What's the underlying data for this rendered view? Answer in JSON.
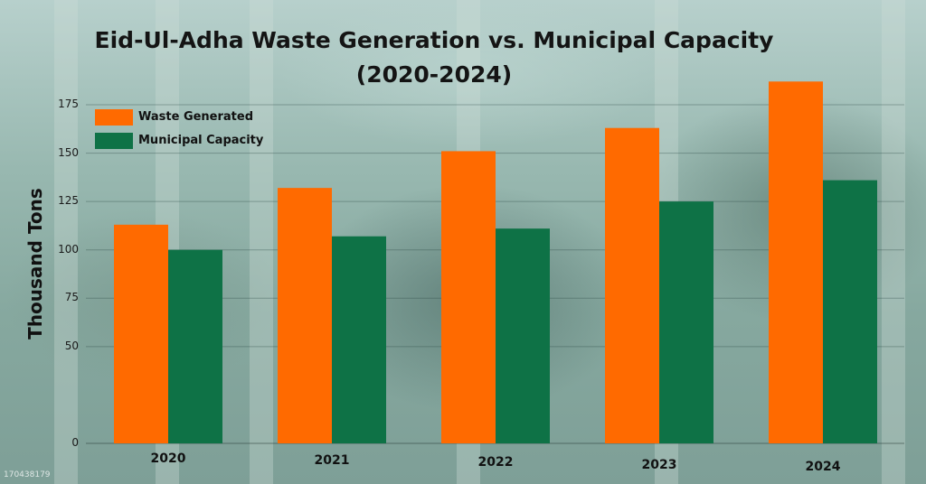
{
  "watermark": "170438179",
  "chart_data": {
    "type": "bar",
    "title_lines": [
      "Eid-Ul-Adha Waste Generation vs. Municipal Capacity",
      "(2020-2024)"
    ],
    "xlabel": "",
    "ylabel": "Thousand Tons",
    "categories": [
      "2020",
      "2021",
      "2022",
      "2023",
      "2024"
    ],
    "series": [
      {
        "name": "Waste Generated",
        "color": "#ff6a00",
        "values": [
          113,
          132,
          151,
          163,
          187
        ]
      },
      {
        "name": "Municipal Capacity",
        "color": "#0e7246",
        "values": [
          100,
          107,
          111,
          125,
          136
        ]
      }
    ],
    "ylim": [
      0,
      185
    ],
    "yticks": [
      0,
      50,
      75,
      100,
      125,
      150,
      175
    ],
    "grid": true,
    "legend_position": "top-left"
  }
}
